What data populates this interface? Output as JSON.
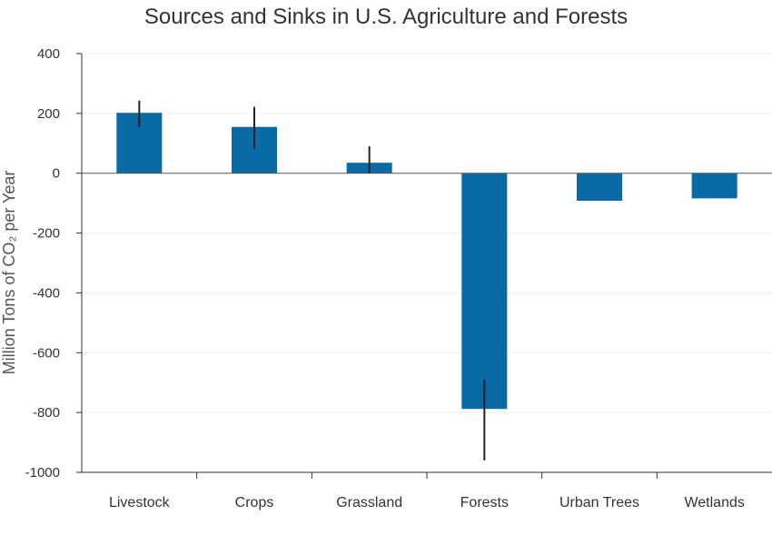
{
  "chart_data": {
    "type": "bar",
    "title": "Sources and Sinks in U.S. Agriculture and Forests",
    "ylabel": "Million Tons of CO₂ per Year",
    "xlabel": "",
    "categories": [
      "Livestock",
      "Crops",
      "Grassland",
      "Forests",
      "Urban Trees",
      "Wetlands"
    ],
    "values": [
      202,
      155,
      35,
      -788,
      -92,
      -84
    ],
    "error_low": [
      155,
      82,
      0,
      -960,
      null,
      null
    ],
    "error_high": [
      243,
      222,
      90,
      -690,
      null,
      null
    ],
    "ylim": [
      -1000,
      400
    ],
    "yticks": [
      "400",
      "200",
      "0",
      "-200",
      "-400",
      "-600",
      "-800",
      "-1000"
    ],
    "grid": true,
    "bar_color": "#0a6aa6"
  }
}
